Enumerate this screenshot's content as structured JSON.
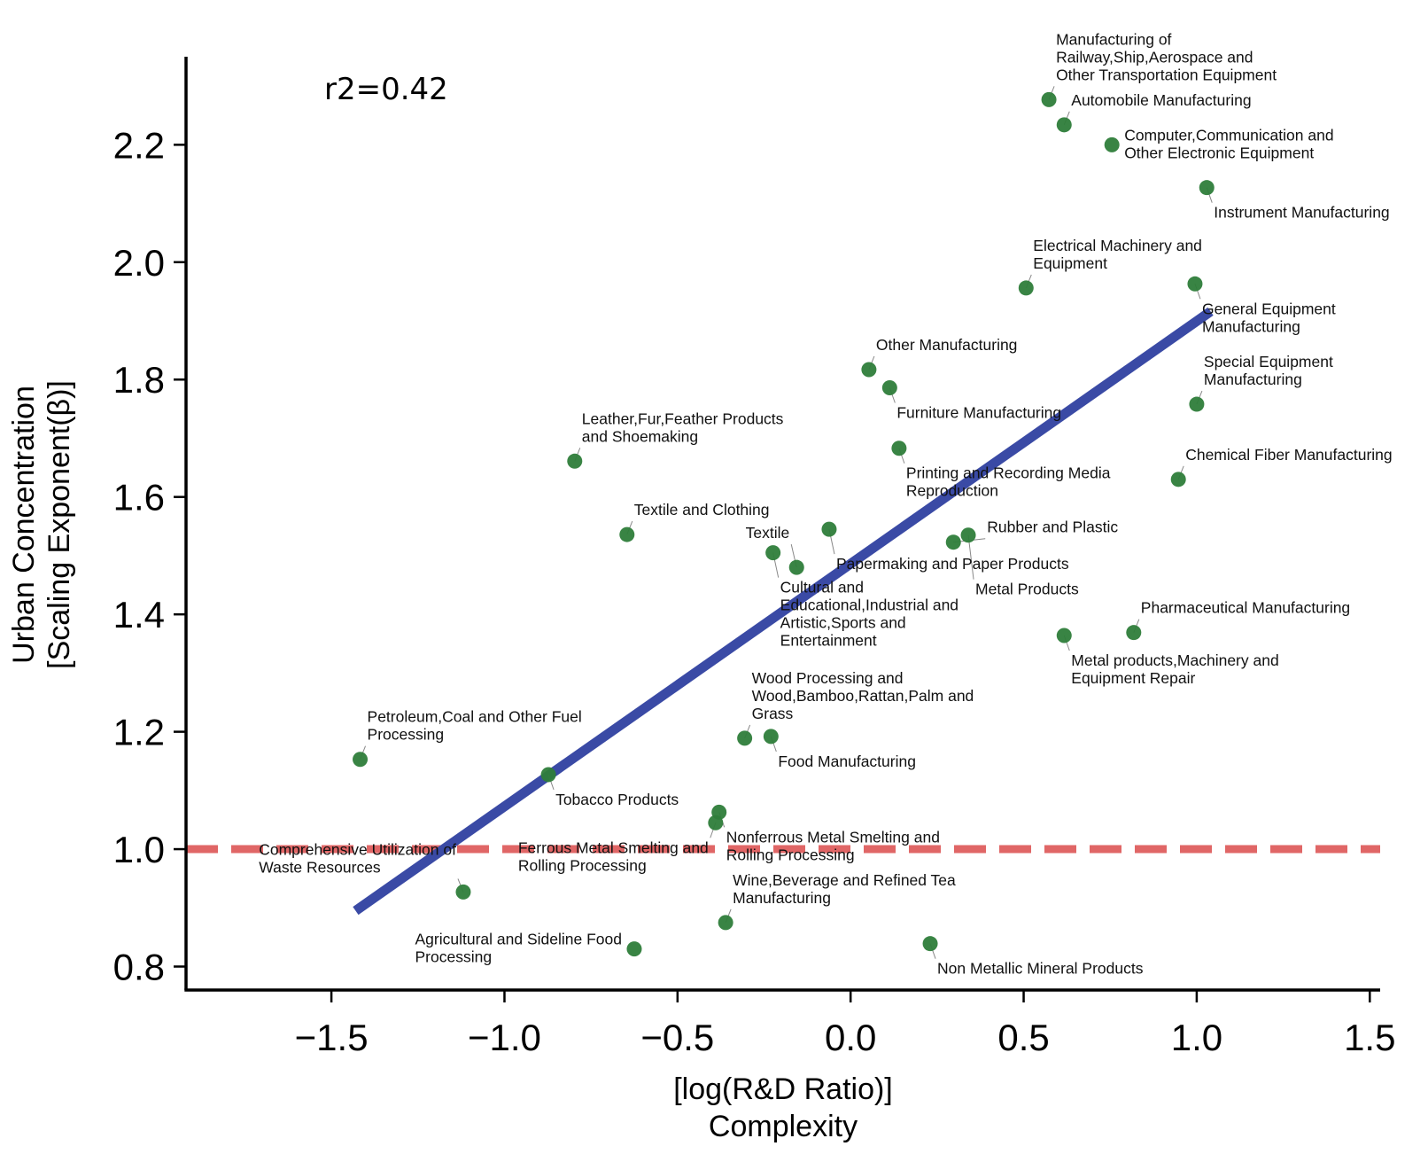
{
  "chart_data": {
    "type": "scatter",
    "xlabel": [
      "[log(R&D Ratio)]",
      "Complexity"
    ],
    "ylabel": [
      "Urban Concentration",
      "[Scaling Exponent(β)]"
    ],
    "xlim": [
      -1.92,
      1.53
    ],
    "ylim": [
      0.76,
      2.35
    ],
    "xticks": [
      "−1.5",
      "−1.0",
      "−0.5",
      "0.0",
      "0.5",
      "1.0",
      "1.5"
    ],
    "xtick_values": [
      -1.5,
      -1.0,
      -0.5,
      0.0,
      0.5,
      1.0,
      1.5
    ],
    "yticks": [
      "0.8",
      "1.0",
      "1.2",
      "1.4",
      "1.6",
      "1.8",
      "2.0",
      "2.2"
    ],
    "ytick_values": [
      0.8,
      1.0,
      1.2,
      1.4,
      1.6,
      1.8,
      2.0,
      2.2
    ],
    "annotation": "r2=0.42",
    "grid": false,
    "colors": {
      "points": "#2e7d3a",
      "fit_line": "#3a4aa5",
      "reference_line": "#e06666"
    },
    "fit_line": {
      "x": [
        -1.43,
        1.04
      ],
      "y": [
        0.895,
        1.916
      ]
    },
    "reference_line": {
      "y": 1.0,
      "style": "dashed"
    },
    "points": [
      {
        "x": 0.573,
        "y": 2.277,
        "label": [
          "Manufacturing of",
          "Railway,Ship,Aerospace and",
          "Other Transportation Equipment"
        ]
      },
      {
        "x": 0.617,
        "y": 2.234,
        "label": [
          "Automobile Manufacturing"
        ]
      },
      {
        "x": 0.755,
        "y": 2.2,
        "label": [
          "Computer,Communication and",
          "Other Electronic Equipment"
        ]
      },
      {
        "x": 1.029,
        "y": 2.127,
        "label": [
          "Instrument Manufacturing"
        ]
      },
      {
        "x": 0.507,
        "y": 1.956,
        "label": [
          "Electrical Machinery and",
          "Equipment"
        ]
      },
      {
        "x": 0.995,
        "y": 1.963,
        "label": [
          "General Equipment",
          "Manufacturing"
        ]
      },
      {
        "x": 0.053,
        "y": 1.817,
        "label": [
          "Other Manufacturing"
        ]
      },
      {
        "x": 0.113,
        "y": 1.786,
        "label": [
          "Furniture Manufacturing"
        ]
      },
      {
        "x": 1.0,
        "y": 1.758,
        "label": [
          "Special Equipment",
          "Manufacturing"
        ]
      },
      {
        "x": 0.14,
        "y": 1.683,
        "label": [
          "Printing and Recording Media",
          "Reproduction"
        ]
      },
      {
        "x": -0.797,
        "y": 1.661,
        "label": [
          "Leather,Fur,Feather Products",
          "and Shoemaking"
        ]
      },
      {
        "x": 0.947,
        "y": 1.63,
        "label": [
          "Chemical Fiber Manufacturing"
        ]
      },
      {
        "x": -0.646,
        "y": 1.536,
        "label": [
          "Textile and Clothing"
        ]
      },
      {
        "x": -0.224,
        "y": 1.505,
        "label": [
          "Cultural and",
          "Educational,Industrial and",
          "Artistic,Sports and",
          "Entertainment"
        ]
      },
      {
        "x": -0.062,
        "y": 1.545,
        "label": [
          "Papermaking and Paper Products"
        ]
      },
      {
        "x": 0.297,
        "y": 1.523,
        "label": [
          "Rubber and Plastic"
        ]
      },
      {
        "x": 0.34,
        "y": 1.535,
        "label": [
          "Metal Products"
        ]
      },
      {
        "x": -0.156,
        "y": 1.48,
        "label": [
          "Textile"
        ]
      },
      {
        "x": 0.617,
        "y": 1.364,
        "label": [
          "Metal products,Machinery and",
          "Equipment Repair"
        ]
      },
      {
        "x": 0.818,
        "y": 1.369,
        "label": [
          "Pharmaceutical Manufacturing"
        ]
      },
      {
        "x": -0.306,
        "y": 1.189,
        "label": [
          "Wood Processing and",
          "Wood,Bamboo,Rattan,Palm and",
          "Grass"
        ]
      },
      {
        "x": -0.23,
        "y": 1.192,
        "label": [
          "Food Manufacturing"
        ]
      },
      {
        "x": -1.417,
        "y": 1.153,
        "label": [
          "Petroleum,Coal and Other Fuel",
          "Processing"
        ]
      },
      {
        "x": -0.873,
        "y": 1.127,
        "label": [
          "Tobacco Products"
        ]
      },
      {
        "x": -0.38,
        "y": 1.063,
        "label": [
          "Nonferrous Metal Smelting and",
          "Rolling Processing"
        ]
      },
      {
        "x": -0.39,
        "y": 1.045,
        "label": [
          "Ferrous Metal Smelting and",
          "Rolling Processing"
        ]
      },
      {
        "x": -1.119,
        "y": 0.927,
        "label": [
          "Comprehensive Utilization of",
          "Waste Resources"
        ]
      },
      {
        "x": -0.361,
        "y": 0.875,
        "label": [
          "Wine,Beverage and Refined Tea",
          "Manufacturing"
        ]
      },
      {
        "x": -0.625,
        "y": 0.83,
        "label": [
          "Agricultural and Sideline Food",
          "Processing"
        ]
      },
      {
        "x": 0.23,
        "y": 0.839,
        "label": [
          "Non Metallic Mineral Products"
        ]
      }
    ]
  }
}
